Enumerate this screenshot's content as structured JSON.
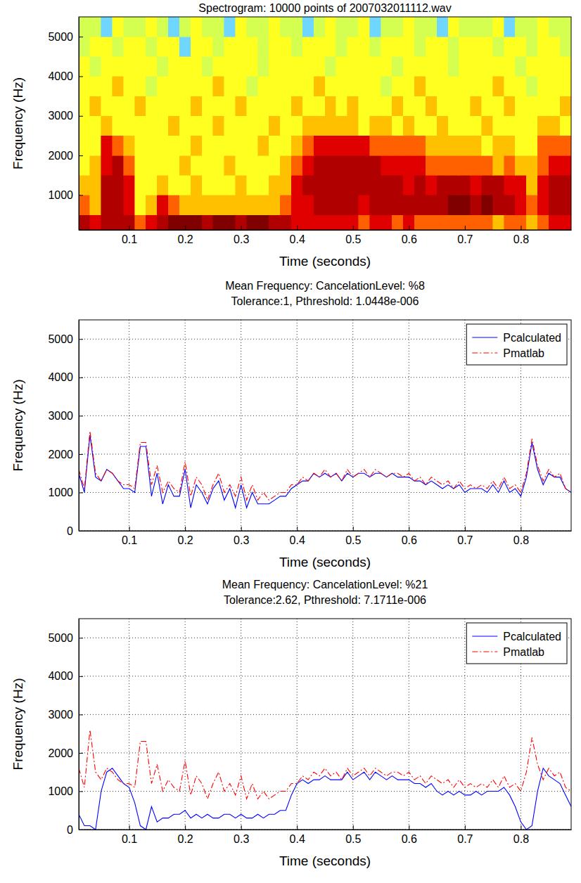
{
  "chart_data": [
    {
      "type": "heatmap",
      "title": "Spectrogram: 10000 points of 2007032011112.wav",
      "x_label": "Time (seconds)",
      "y_label": "Frequency (Hz)",
      "x": [
        0.02,
        0.04,
        0.06,
        0.08,
        0.1,
        0.12,
        0.14,
        0.16,
        0.18,
        0.2,
        0.22,
        0.24,
        0.26,
        0.28,
        0.3,
        0.32,
        0.34,
        0.36,
        0.38,
        0.4,
        0.42,
        0.44,
        0.46,
        0.48,
        0.5,
        0.52,
        0.54,
        0.56,
        0.58,
        0.6,
        0.62,
        0.64,
        0.66,
        0.68,
        0.7,
        0.72,
        0.74,
        0.76,
        0.78,
        0.8,
        0.82,
        0.84,
        0.86,
        0.88
      ],
      "y": [
        250,
        750,
        1250,
        1750,
        2250,
        2750,
        3250,
        3750,
        4250,
        4750,
        5250
      ],
      "cells": [
        [
          8,
          7,
          8,
          8,
          8,
          6,
          7,
          8,
          9,
          9,
          9,
          8,
          9,
          9,
          8,
          9,
          9,
          8,
          8,
          7,
          7,
          7,
          7,
          7,
          7,
          6,
          7,
          7,
          6,
          7,
          6,
          6,
          6,
          6,
          6,
          6,
          6,
          5,
          6,
          6,
          5,
          6,
          7,
          7
        ],
        [
          6,
          5,
          8,
          8,
          7,
          4,
          5,
          7,
          6,
          5,
          5,
          5,
          5,
          5,
          5,
          5,
          5,
          5,
          6,
          7,
          7,
          8,
          8,
          8,
          8,
          7,
          8,
          8,
          8,
          8,
          8,
          8,
          8,
          9,
          9,
          8,
          9,
          8,
          8,
          7,
          6,
          7,
          8,
          8
        ],
        [
          5,
          5,
          8,
          8,
          7,
          4,
          4,
          5,
          4,
          4,
          5,
          4,
          4,
          4,
          5,
          4,
          4,
          5,
          5,
          7,
          8,
          8,
          8,
          8,
          8,
          8,
          8,
          8,
          8,
          7,
          8,
          7,
          8,
          8,
          8,
          7,
          8,
          8,
          7,
          7,
          5,
          7,
          8,
          8
        ],
        [
          4,
          5,
          7,
          8,
          6,
          4,
          4,
          4,
          4,
          5,
          4,
          4,
          4,
          5,
          4,
          4,
          4,
          4,
          5,
          6,
          7,
          8,
          8,
          8,
          8,
          8,
          8,
          7,
          7,
          7,
          7,
          6,
          6,
          6,
          6,
          6,
          6,
          5,
          6,
          5,
          5,
          6,
          7,
          7
        ],
        [
          4,
          4,
          7,
          6,
          5,
          4,
          4,
          4,
          4,
          4,
          5,
          4,
          4,
          4,
          4,
          4,
          5,
          4,
          4,
          5,
          6,
          7,
          7,
          7,
          7,
          7,
          6,
          6,
          6,
          6,
          6,
          5,
          5,
          5,
          5,
          5,
          4,
          5,
          5,
          4,
          4,
          6,
          6,
          6
        ],
        [
          4,
          4,
          5,
          4,
          4,
          4,
          4,
          4,
          5,
          4,
          4,
          4,
          5,
          4,
          4,
          4,
          4,
          5,
          4,
          4,
          5,
          5,
          5,
          5,
          5,
          4,
          5,
          5,
          4,
          5,
          4,
          4,
          5,
          4,
          4,
          4,
          5,
          4,
          4,
          4,
          4,
          5,
          5,
          4
        ],
        [
          4,
          5,
          4,
          4,
          4,
          5,
          4,
          4,
          4,
          4,
          5,
          4,
          4,
          4,
          5,
          4,
          4,
          4,
          4,
          5,
          4,
          4,
          5,
          4,
          5,
          4,
          4,
          4,
          5,
          4,
          4,
          5,
          4,
          4,
          4,
          5,
          4,
          4,
          5,
          4,
          4,
          4,
          4,
          5
        ],
        [
          4,
          4,
          4,
          5,
          4,
          4,
          3,
          4,
          4,
          4,
          4,
          4,
          5,
          4,
          4,
          3,
          4,
          4,
          4,
          4,
          4,
          5,
          4,
          4,
          4,
          4,
          4,
          3,
          4,
          4,
          5,
          4,
          4,
          4,
          4,
          4,
          4,
          5,
          4,
          4,
          3,
          4,
          4,
          4
        ],
        [
          4,
          3,
          4,
          4,
          4,
          4,
          4,
          3,
          4,
          4,
          4,
          3,
          4,
          4,
          4,
          4,
          3,
          4,
          4,
          4,
          4,
          4,
          3,
          4,
          4,
          4,
          4,
          4,
          3,
          4,
          4,
          4,
          4,
          3,
          4,
          4,
          4,
          4,
          4,
          3,
          4,
          4,
          4,
          4
        ],
        [
          3,
          4,
          4,
          3,
          4,
          4,
          3,
          4,
          4,
          2,
          4,
          4,
          3,
          4,
          4,
          4,
          3,
          4,
          4,
          3,
          4,
          4,
          4,
          3,
          4,
          4,
          3,
          4,
          4,
          4,
          3,
          4,
          4,
          3,
          4,
          4,
          4,
          3,
          4,
          4,
          3,
          4,
          4,
          3
        ],
        [
          3,
          3,
          2,
          4,
          3,
          3,
          4,
          3,
          2,
          3,
          4,
          3,
          3,
          2,
          4,
          3,
          3,
          4,
          3,
          3,
          2,
          3,
          4,
          3,
          3,
          4,
          2,
          3,
          3,
          4,
          3,
          3,
          2,
          4,
          3,
          3,
          3,
          4,
          2,
          3,
          3,
          4,
          3,
          3
        ]
      ],
      "xlim": [
        0.01,
        0.89
      ],
      "ylim": [
        120,
        5500
      ],
      "xticks": [
        0.1,
        0.2,
        0.3,
        0.4,
        0.5,
        0.6,
        0.7,
        0.8
      ],
      "yticks": [
        1000,
        2000,
        3000,
        4000,
        5000
      ]
    },
    {
      "type": "line",
      "title": "Mean Frequency: CancelationLevel: %8",
      "subtitle": "Tolerance:1, Pthreshold: 1.0448e-006",
      "x_label": "Time (seconds)",
      "y_label": "Frequency (Hz)",
      "x": [
        0.01,
        0.02,
        0.03,
        0.04,
        0.05,
        0.06,
        0.07,
        0.08,
        0.09,
        0.1,
        0.11,
        0.12,
        0.13,
        0.14,
        0.15,
        0.16,
        0.17,
        0.18,
        0.19,
        0.2,
        0.21,
        0.22,
        0.23,
        0.24,
        0.25,
        0.26,
        0.27,
        0.28,
        0.29,
        0.3,
        0.31,
        0.32,
        0.33,
        0.34,
        0.35,
        0.36,
        0.37,
        0.38,
        0.39,
        0.4,
        0.41,
        0.42,
        0.43,
        0.44,
        0.45,
        0.46,
        0.47,
        0.48,
        0.49,
        0.5,
        0.51,
        0.52,
        0.53,
        0.54,
        0.55,
        0.56,
        0.57,
        0.58,
        0.59,
        0.6,
        0.61,
        0.62,
        0.63,
        0.64,
        0.65,
        0.66,
        0.67,
        0.68,
        0.69,
        0.7,
        0.71,
        0.72,
        0.73,
        0.74,
        0.75,
        0.76,
        0.77,
        0.78,
        0.79,
        0.8,
        0.81,
        0.82,
        0.83,
        0.84,
        0.85,
        0.86,
        0.87,
        0.88,
        0.89
      ],
      "series": [
        {
          "name": "Pcalculated",
          "color": "#0000ff",
          "line_style": "solid",
          "values": [
            1500,
            1000,
            2500,
            1400,
            1300,
            1600,
            1500,
            1300,
            1100,
            1100,
            1000,
            2200,
            2200,
            900,
            1500,
            700,
            1200,
            900,
            900,
            1600,
            600,
            1200,
            1000,
            700,
            1100,
            1300,
            800,
            1100,
            600,
            1200,
            600,
            1000,
            700,
            700,
            700,
            800,
            900,
            900,
            1100,
            1200,
            1300,
            1300,
            1500,
            1400,
            1500,
            1400,
            1500,
            1300,
            1500,
            1400,
            1500,
            1500,
            1400,
            1500,
            1500,
            1400,
            1500,
            1400,
            1400,
            1400,
            1300,
            1300,
            1200,
            1300,
            1200,
            1100,
            1200,
            1100,
            1200,
            1000,
            1100,
            1100,
            1100,
            1000,
            1200,
            1000,
            1300,
            1000,
            1100,
            900,
            1400,
            2300,
            1600,
            1200,
            1500,
            1400,
            1400,
            1100,
            1000
          ]
        },
        {
          "name": "Pmatlab",
          "color": "#ff0000",
          "line_style": "dashdot",
          "values": [
            1600,
            1100,
            2600,
            1500,
            1300,
            1600,
            1500,
            1300,
            1200,
            1200,
            1100,
            2300,
            2300,
            1200,
            1700,
            1000,
            1300,
            1100,
            1000,
            1800,
            900,
            1400,
            1200,
            800,
            1200,
            1500,
            1000,
            1200,
            900,
            1400,
            800,
            1200,
            800,
            1000,
            800,
            900,
            1000,
            1000,
            1200,
            1200,
            1400,
            1300,
            1500,
            1400,
            1600,
            1400,
            1500,
            1300,
            1600,
            1400,
            1500,
            1600,
            1400,
            1600,
            1500,
            1400,
            1500,
            1500,
            1400,
            1500,
            1300,
            1400,
            1200,
            1400,
            1300,
            1200,
            1300,
            1100,
            1300,
            1100,
            1200,
            1100,
            1200,
            1100,
            1300,
            1100,
            1400,
            1100,
            1200,
            1000,
            1500,
            2400,
            1700,
            1300,
            1600,
            1400,
            1500,
            1100,
            1000
          ]
        }
      ],
      "xlim": [
        0.01,
        0.89
      ],
      "ylim": [
        0,
        5500
      ],
      "xticks": [
        0.1,
        0.2,
        0.3,
        0.4,
        0.5,
        0.6,
        0.7,
        0.8
      ],
      "yticks": [
        0,
        1000,
        2000,
        3000,
        4000,
        5000
      ],
      "grid": true,
      "legend": "upper right"
    },
    {
      "type": "line",
      "title": "Mean Frequency: CancelationLevel: %21",
      "subtitle": "Tolerance:2.62, Pthreshold: 7.1711e-006",
      "x_label": "Time (seconds)",
      "y_label": "Frequency (Hz)",
      "x": [
        0.01,
        0.02,
        0.03,
        0.04,
        0.05,
        0.06,
        0.07,
        0.08,
        0.09,
        0.1,
        0.11,
        0.12,
        0.13,
        0.14,
        0.15,
        0.16,
        0.17,
        0.18,
        0.19,
        0.2,
        0.21,
        0.22,
        0.23,
        0.24,
        0.25,
        0.26,
        0.27,
        0.28,
        0.29,
        0.3,
        0.31,
        0.32,
        0.33,
        0.34,
        0.35,
        0.36,
        0.37,
        0.38,
        0.39,
        0.4,
        0.41,
        0.42,
        0.43,
        0.44,
        0.45,
        0.46,
        0.47,
        0.48,
        0.49,
        0.5,
        0.51,
        0.52,
        0.53,
        0.54,
        0.55,
        0.56,
        0.57,
        0.58,
        0.59,
        0.6,
        0.61,
        0.62,
        0.63,
        0.64,
        0.65,
        0.66,
        0.67,
        0.68,
        0.69,
        0.7,
        0.71,
        0.72,
        0.73,
        0.74,
        0.75,
        0.76,
        0.77,
        0.78,
        0.79,
        0.8,
        0.81,
        0.82,
        0.83,
        0.84,
        0.85,
        0.86,
        0.87,
        0.88,
        0.89
      ],
      "series": [
        {
          "name": "Pcalculated",
          "color": "#0000ff",
          "line_style": "solid",
          "values": [
            400,
            100,
            100,
            0,
            1000,
            1500,
            1600,
            1400,
            1200,
            1100,
            700,
            100,
            0,
            600,
            200,
            300,
            300,
            400,
            400,
            500,
            300,
            400,
            300,
            400,
            300,
            300,
            400,
            400,
            300,
            400,
            300,
            300,
            400,
            300,
            400,
            400,
            500,
            500,
            900,
            1200,
            1300,
            1200,
            1300,
            1300,
            1400,
            1300,
            1300,
            1300,
            1500,
            1300,
            1400,
            1500,
            1300,
            1500,
            1400,
            1300,
            1400,
            1300,
            1300,
            1300,
            1200,
            1200,
            1100,
            1200,
            1000,
            900,
            1000,
            900,
            1000,
            900,
            900,
            1000,
            900,
            1000,
            1000,
            1000,
            1100,
            900,
            600,
            200,
            0,
            100,
            1000,
            1600,
            1400,
            1300,
            1200,
            900,
            600
          ]
        },
        {
          "name": "Pmatlab",
          "color": "#ff0000",
          "line_style": "dashdot",
          "values": [
            1600,
            1100,
            2600,
            1500,
            1300,
            1600,
            1500,
            1300,
            1200,
            1200,
            1100,
            2300,
            2300,
            1200,
            1700,
            1000,
            1300,
            1100,
            1000,
            1800,
            900,
            1400,
            1200,
            800,
            1200,
            1500,
            1000,
            1200,
            900,
            1400,
            800,
            1200,
            800,
            1000,
            800,
            900,
            1000,
            1000,
            1200,
            1200,
            1400,
            1300,
            1500,
            1400,
            1600,
            1400,
            1500,
            1300,
            1600,
            1400,
            1500,
            1600,
            1400,
            1600,
            1500,
            1400,
            1500,
            1500,
            1400,
            1500,
            1300,
            1400,
            1200,
            1400,
            1300,
            1200,
            1300,
            1100,
            1300,
            1100,
            1200,
            1100,
            1200,
            1100,
            1300,
            1100,
            1400,
            1100,
            1200,
            1000,
            1500,
            2400,
            1700,
            1300,
            1600,
            1400,
            1500,
            1100,
            1000
          ]
        }
      ],
      "xlim": [
        0.01,
        0.89
      ],
      "ylim": [
        0,
        5500
      ],
      "xticks": [
        0.1,
        0.2,
        0.3,
        0.4,
        0.5,
        0.6,
        0.7,
        0.8
      ],
      "yticks": [
        0,
        1000,
        2000,
        3000,
        4000,
        5000
      ],
      "grid": true,
      "legend": "upper right"
    }
  ]
}
